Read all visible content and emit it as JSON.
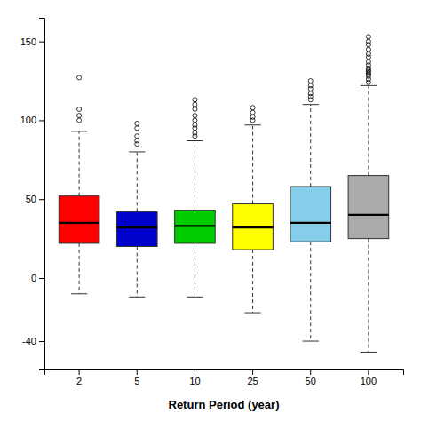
{
  "chart_data": {
    "type": "box",
    "xlabel": "Return Period  (year)",
    "categories": [
      "2",
      "5",
      "10",
      "25",
      "50",
      "100"
    ],
    "colors": [
      "red",
      "#0000CC",
      "#00CC00",
      "#FFFF00",
      "#87CEEB",
      "#AAAAAA"
    ],
    "boxes": [
      {
        "q1": 22,
        "median": 35,
        "q3": 52,
        "whisker_low": -10,
        "whisker_high": 93,
        "outliers": [
          100,
          103,
          107,
          127
        ]
      },
      {
        "q1": 20,
        "median": 32,
        "q3": 42,
        "whisker_low": -12,
        "whisker_high": 80,
        "outliers": [
          85,
          87,
          90,
          95,
          98
        ]
      },
      {
        "q1": 22,
        "median": 33,
        "q3": 43,
        "whisker_low": -12,
        "whisker_high": 87,
        "outliers": [
          90,
          92,
          95,
          97,
          100,
          103,
          107,
          110,
          113
        ]
      },
      {
        "q1": 18,
        "median": 32,
        "q3": 47,
        "whisker_low": -22,
        "whisker_high": 97,
        "outliers": [
          100,
          102,
          105,
          108
        ]
      },
      {
        "q1": 23,
        "median": 35,
        "q3": 58,
        "whisker_low": -40,
        "whisker_high": 110,
        "outliers": [
          113,
          115,
          117,
          120,
          122,
          125
        ]
      },
      {
        "q1": 25,
        "median": 40,
        "q3": 65,
        "whisker_low": -47,
        "whisker_high": 122,
        "outliers": [
          124,
          126,
          128,
          129,
          130,
          131,
          132,
          133,
          135,
          137,
          140,
          142,
          145,
          148,
          150,
          153
        ]
      }
    ],
    "ylim": [
      -58,
      165
    ],
    "yticks": [
      -40,
      0,
      50,
      100,
      150
    ],
    "grid": false
  }
}
